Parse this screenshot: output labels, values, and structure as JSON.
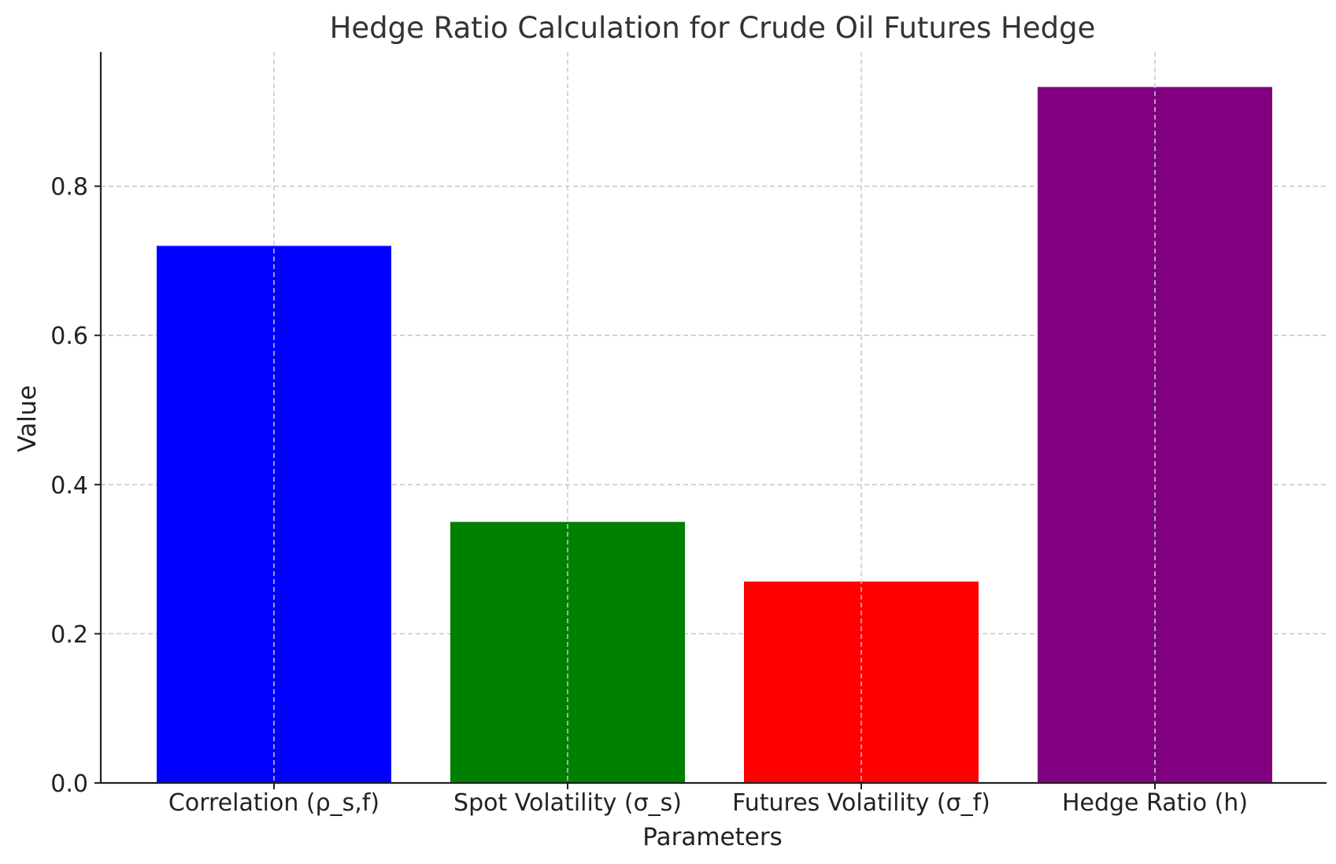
{
  "chart_data": {
    "type": "bar",
    "title": "Hedge Ratio Calculation for Crude Oil Futures Hedge",
    "xlabel": "Parameters",
    "ylabel": "Value",
    "categories": [
      "Correlation (ρ_s,f)",
      "Spot Volatility (σ_s)",
      "Futures Volatility (σ_f)",
      "Hedge Ratio (h)"
    ],
    "values": [
      0.72,
      0.35,
      0.27,
      0.933
    ],
    "colors": [
      "#0000ff",
      "#008000",
      "#ff0000",
      "#800080"
    ],
    "ylim": [
      0,
      0.98
    ],
    "yticks": [
      0.0,
      0.2,
      0.4,
      0.6,
      0.8
    ],
    "ytick_labels": [
      "0.0",
      "0.2",
      "0.4",
      "0.6",
      "0.8"
    ],
    "grid": true,
    "legend": "none"
  }
}
